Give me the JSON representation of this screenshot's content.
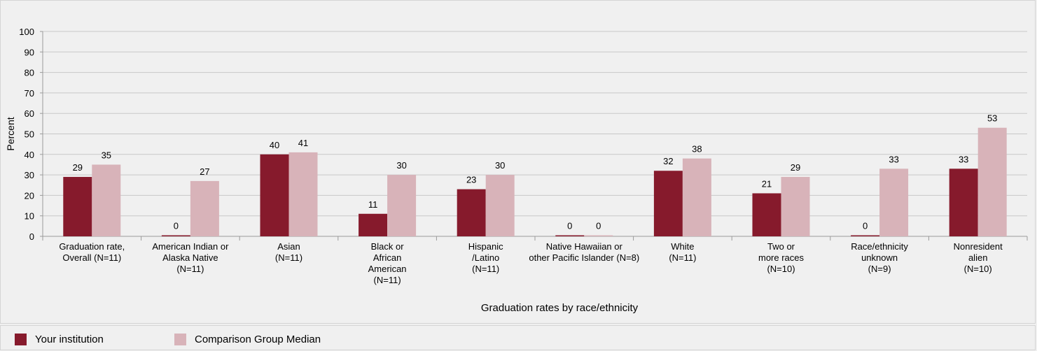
{
  "chart_data": {
    "type": "bar",
    "ylabel": "Percent",
    "xlabel": "Graduation rates by race/ethnicity",
    "ylim": [
      0,
      100
    ],
    "yticks": [
      "0",
      "10",
      "20",
      "30",
      "40",
      "50",
      "60",
      "70",
      "80",
      "90",
      "100"
    ],
    "grid": true,
    "legend_position": "bottom",
    "categories": [
      [
        "Graduation rate,",
        "Overall (N=11)"
      ],
      [
        "American Indian or",
        "Alaska Native",
        "(N=11)"
      ],
      [
        "Asian",
        "(N=11)"
      ],
      [
        "Black or",
        "African",
        "American",
        "(N=11)"
      ],
      [
        "Hispanic",
        "/Latino",
        "(N=11)"
      ],
      [
        "Native Hawaiian or",
        "other Pacific Islander (N=8)"
      ],
      [
        "White",
        "(N=11)"
      ],
      [
        "Two or",
        "more races",
        "(N=10)"
      ],
      [
        "Race/ethnicity",
        "unknown",
        "(N=9)"
      ],
      [
        "Nonresident",
        "alien",
        "(N=10)"
      ]
    ],
    "series": [
      {
        "name": "Your institution",
        "color": "#861a2c",
        "values": [
          29,
          0,
          40,
          11,
          23,
          0,
          32,
          21,
          0,
          33
        ]
      },
      {
        "name": "Comparison Group Median",
        "color": "#d8b3b9",
        "values": [
          35,
          27,
          41,
          30,
          30,
          0,
          38,
          29,
          33,
          53
        ]
      }
    ]
  }
}
